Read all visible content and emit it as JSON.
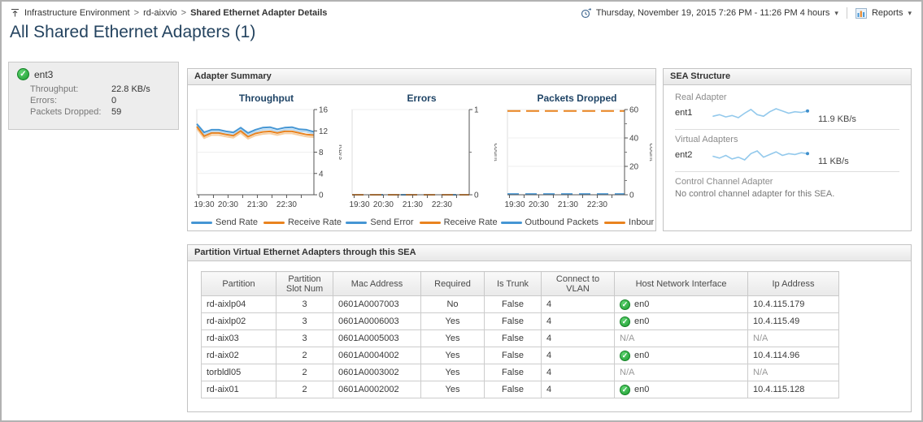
{
  "header": {
    "breadcrumb": [
      "Infrastructure Environment",
      "rd-aixvio",
      "Shared Ethernet Adapter Details"
    ],
    "separator": ">",
    "title": "All Shared Ethernet Adapters (1)",
    "time_range": "Thursday, November 19, 2015 7:26 PM - 11:26 PM 4 hours",
    "reports_label": "Reports"
  },
  "icons": {
    "caret": "▾",
    "check": "✓"
  },
  "summary_card": {
    "name": "ent3",
    "rows": [
      {
        "label": "Throughput:",
        "value": "22.8 KB/s"
      },
      {
        "label": "Errors:",
        "value": "0"
      },
      {
        "label": "Packets Dropped:",
        "value": "59"
      }
    ]
  },
  "adapter_summary": {
    "title": "Adapter Summary"
  },
  "chart_data": [
    {
      "type": "line",
      "title": "Throughput",
      "ylabel": "KB/s",
      "ylim": [
        0,
        16
      ],
      "yticks": [
        0,
        4,
        8,
        12,
        16
      ],
      "x_ticks": [
        0.017,
        0.142,
        0.267,
        0.392,
        0.517,
        0.642,
        0.767,
        0.892
      ],
      "x_labels": [
        {
          "text": "19:30",
          "pos": 0.017
        },
        {
          "text": "20:30",
          "pos": 0.267
        },
        {
          "text": "21:30",
          "pos": 0.517
        },
        {
          "text": "22:30",
          "pos": 0.767
        }
      ],
      "series": [
        {
          "name": "Send Rate",
          "color": "#4596d4",
          "light": "#b9d9f1",
          "values": [
            13.3,
            11.7,
            12.2,
            12.2,
            11.9,
            11.7,
            12.6,
            11.6,
            12.2,
            12.6,
            12.7,
            12.3,
            12.6,
            12.7,
            12.3,
            12.2,
            11.8
          ]
        },
        {
          "name": "Receive Rate",
          "color": "#e9831f",
          "light": "#f6cfa2",
          "values": [
            12.8,
            11.0,
            11.6,
            11.6,
            11.3,
            11.1,
            12.0,
            10.9,
            11.5,
            11.8,
            11.9,
            11.6,
            11.9,
            11.9,
            11.6,
            11.3,
            11.2
          ]
        }
      ],
      "legend_position": "bottom",
      "grid": true
    },
    {
      "type": "line",
      "title": "Errors",
      "ylabel": "count",
      "ylim": [
        0,
        1
      ],
      "yticks": [
        0,
        1
      ],
      "y_minor": [
        0.5
      ],
      "x_ticks": [
        0.017,
        0.142,
        0.267,
        0.392,
        0.517,
        0.642,
        0.767,
        0.892
      ],
      "x_labels": [
        {
          "text": "19:30",
          "pos": 0.017
        },
        {
          "text": "20:30",
          "pos": 0.267
        },
        {
          "text": "21:30",
          "pos": 0.517
        },
        {
          "text": "22:30",
          "pos": 0.767
        }
      ],
      "series": [
        {
          "name": "Send Error",
          "color": "#4596d4",
          "dash": "8 22",
          "values": [
            0,
            0,
            0,
            0,
            0,
            0,
            0,
            0,
            0,
            0,
            0,
            0,
            0,
            0,
            0,
            0,
            0
          ]
        },
        {
          "name": "Receive Rate",
          "color": "#e9831f",
          "dash": "14 8",
          "values": [
            0,
            0,
            0,
            0,
            0,
            0,
            0,
            0,
            0,
            0,
            0,
            0,
            0,
            0,
            0,
            0,
            0
          ]
        }
      ],
      "legend_position": "bottom",
      "grid": true
    },
    {
      "type": "line",
      "title": "Packets Dropped",
      "ylabel": "count",
      "ylim": [
        0,
        60
      ],
      "yticks": [
        0,
        20,
        40,
        60
      ],
      "y_minor": [
        10,
        30,
        50
      ],
      "x_ticks": [
        0.017,
        0.142,
        0.267,
        0.392,
        0.517,
        0.642,
        0.767,
        0.892
      ],
      "x_labels": [
        {
          "text": "19:30",
          "pos": 0.017
        },
        {
          "text": "20:30",
          "pos": 0.267
        },
        {
          "text": "21:30",
          "pos": 0.517
        },
        {
          "text": "22:30",
          "pos": 0.767
        }
      ],
      "series": [
        {
          "name": "Outbound Packets",
          "color": "#4596d4",
          "dash": "14 8",
          "values": [
            0.5,
            0.5,
            0.5,
            0.5,
            0.5,
            0.5,
            0.5,
            0.5,
            0.5,
            0.5,
            0.5,
            0.5,
            0.5,
            0.5,
            0.5,
            0.5,
            0.5
          ]
        },
        {
          "name": "Inbound Pack",
          "color": "#e9831f",
          "dash": "16 7",
          "values": [
            59,
            59,
            59,
            59,
            59,
            59,
            59,
            59,
            59,
            59,
            59,
            59,
            59,
            59,
            59,
            59,
            59
          ]
        }
      ],
      "legend_position": "bottom",
      "grid": true
    }
  ],
  "sea_structure": {
    "title": "SEA Structure",
    "sections": [
      {
        "label": "Real Adapter",
        "adapter": "ent1",
        "value": "11.9 KB/s",
        "sparkline": [
          6.2,
          6.4,
          6.1,
          6.3,
          6.0,
          6.6,
          7.1,
          6.4,
          6.2,
          6.8,
          7.2,
          6.9,
          6.6,
          6.8,
          6.7,
          6.9
        ]
      },
      {
        "label": "Virtual Adapters",
        "adapter": "ent2",
        "value": "11 KB/s",
        "sparkline": [
          6.4,
          6.2,
          6.5,
          6.1,
          6.3,
          6.0,
          6.7,
          7.0,
          6.3,
          6.6,
          6.9,
          6.5,
          6.7,
          6.6,
          6.8,
          6.7
        ]
      },
      {
        "label": "Control Channel Adapter",
        "message": "No control channel adapter for this SEA."
      }
    ]
  },
  "partition_table": {
    "title": "Partition Virtual Ethernet Adapters through this SEA",
    "columns": [
      "Partition",
      "Partition Slot Num",
      "Mac Address",
      "Required",
      "Is Trunk",
      "Connect to VLAN",
      "Host Network Interface",
      "Ip Address"
    ],
    "rows": [
      {
        "partition": "rd-aixlp04",
        "slot": "3",
        "mac": "0601A0007003",
        "required": "No",
        "is_trunk": "False",
        "vlan": "4",
        "host_interface": "en0",
        "ip": "10.4.115.179"
      },
      {
        "partition": "rd-aixlp02",
        "slot": "3",
        "mac": "0601A0006003",
        "required": "Yes",
        "is_trunk": "False",
        "vlan": "4",
        "host_interface": "en0",
        "ip": "10.4.115.49"
      },
      {
        "partition": "rd-aix03",
        "slot": "3",
        "mac": "0601A0005003",
        "required": "Yes",
        "is_trunk": "False",
        "vlan": "4",
        "host_interface": "N/A",
        "ip": "N/A"
      },
      {
        "partition": "rd-aix02",
        "slot": "2",
        "mac": "0601A0004002",
        "required": "Yes",
        "is_trunk": "False",
        "vlan": "4",
        "host_interface": "en0",
        "ip": "10.4.114.96"
      },
      {
        "partition": "torbldl05",
        "slot": "2",
        "mac": "0601A0003002",
        "required": "Yes",
        "is_trunk": "False",
        "vlan": "4",
        "host_interface": "N/A",
        "ip": "N/A"
      },
      {
        "partition": "rd-aix01",
        "slot": "2",
        "mac": "0601A0002002",
        "required": "Yes",
        "is_trunk": "False",
        "vlan": "4",
        "host_interface": "en0",
        "ip": "10.4.115.128"
      }
    ]
  },
  "colors": {
    "blue": "#4596d4",
    "orange": "#e9831f",
    "green": "#2fae44",
    "title_navy": "#24435f"
  }
}
